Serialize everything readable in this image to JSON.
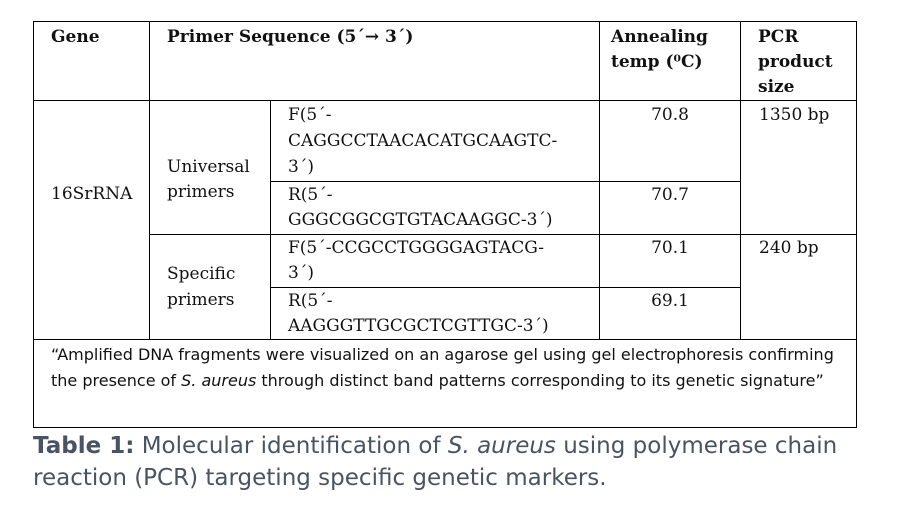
{
  "table": {
    "headers": {
      "gene": "Gene",
      "primer_sequence": "Primer Sequence (5´→ 3´)",
      "annealing_line1": "Annealing",
      "annealing_line2": "temp (⁰C)",
      "pcr_line1": "PCR",
      "pcr_line2": "product",
      "pcr_line3": "size"
    },
    "gene": "16SrRNA",
    "groups": [
      {
        "label_line1": "Universal",
        "label_line2": "primers",
        "product_size": "1350 bp",
        "primers": [
          {
            "lines": [
              "F(5´-",
              "CAGGCCTAACACATGCAAGTC-",
              "3´)"
            ],
            "temp": "70.8"
          },
          {
            "lines": [
              "R(5´-",
              "GGGCGGCGTGTACAAGGC-3´)"
            ],
            "temp": "70.7"
          }
        ]
      },
      {
        "label_line1": "Specific",
        "label_line2": "primers",
        "product_size": "240 bp",
        "primers": [
          {
            "lines": [
              "F(5´-CCGCCTGGGGAGTACG-",
              "3´)"
            ],
            "temp": "70.1"
          },
          {
            "lines": [
              "R(5´-",
              "AAGGGTTGCGCTCGTTGC-3´)"
            ],
            "temp": "69.1"
          }
        ]
      }
    ],
    "note": {
      "before_italic": "“Amplified DNA fragments were visualized on an agarose gel using gel electrophoresis confirming the presence of ",
      "italic": "S. aureus",
      "after_italic": " through distinct band patterns corresponding to its genetic signature”"
    }
  },
  "caption": {
    "label": "Table 1:",
    "text_before": " Molecular identification of ",
    "italic": "S. aureus",
    "text_after": " using polymerase chain reaction (PCR) targeting specific genetic markers."
  },
  "colors": {
    "caption": "#4a5364",
    "rule": "#000000"
  }
}
